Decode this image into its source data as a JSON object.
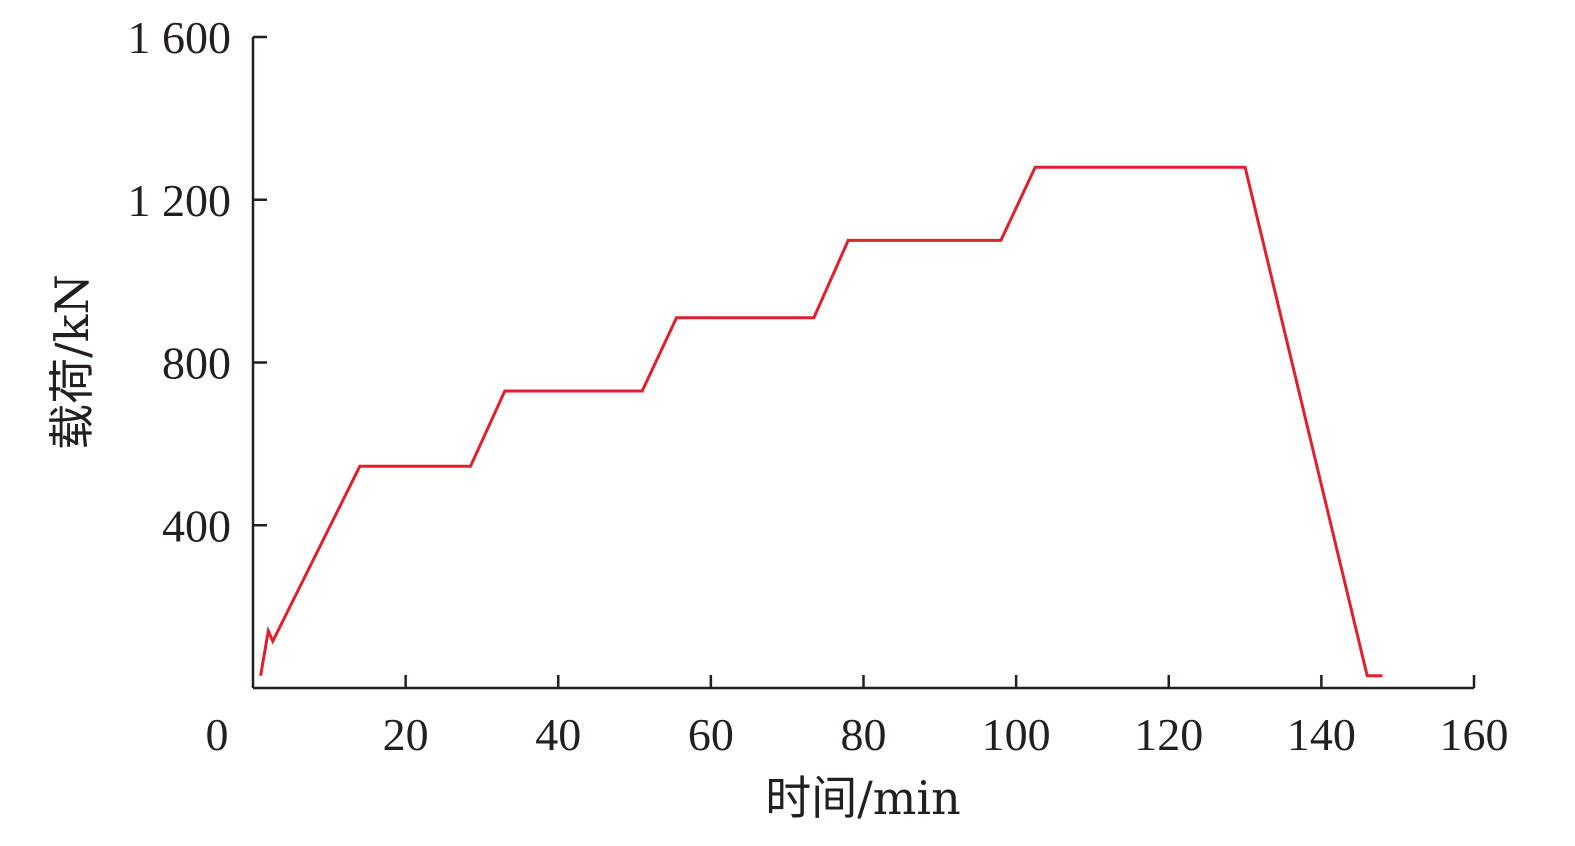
{
  "chart_data": {
    "type": "line",
    "title": "",
    "xlabel": "时间/min",
    "ylabel": "载荷/kN",
    "xlim": [
      0,
      160
    ],
    "ylim": [
      0,
      1600
    ],
    "x_ticks": [
      0,
      20,
      40,
      60,
      80,
      100,
      120,
      140,
      160
    ],
    "x_tick_labels": [
      "0",
      "20",
      "40",
      "60",
      "80",
      "100",
      "120",
      "140",
      "160"
    ],
    "y_ticks": [
      400,
      800,
      1200,
      1600
    ],
    "y_tick_labels": [
      "400",
      "800",
      "1 200",
      "1 600"
    ],
    "grid": false,
    "legend": "none",
    "series": [
      {
        "color": "#e0202e",
        "x": [
          1,
          2,
          2.6,
          14,
          28.5,
          33,
          51,
          55.5,
          73.5,
          78,
          98,
          102.5,
          130,
          146,
          148
        ],
        "y": [
          30,
          140,
          115,
          545,
          545,
          730,
          730,
          910,
          910,
          1100,
          1100,
          1280,
          1280,
          30,
          30
        ]
      }
    ]
  }
}
